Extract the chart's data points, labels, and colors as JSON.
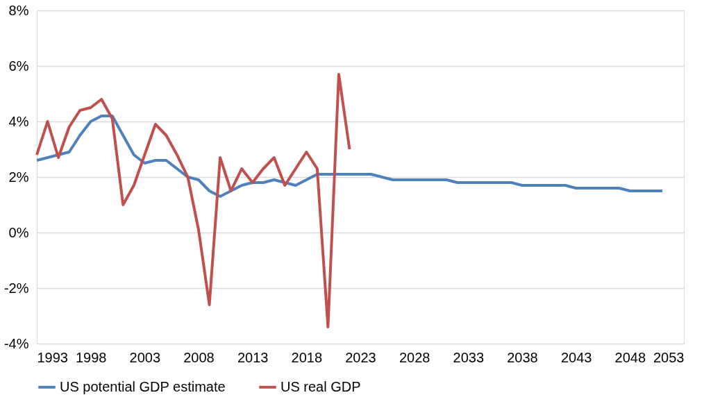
{
  "chart_data": {
    "type": "line",
    "xlim": [
      1993,
      2053
    ],
    "xticks": [
      1993,
      1998,
      2003,
      2008,
      2013,
      2018,
      2023,
      2028,
      2033,
      2038,
      2043,
      2048,
      2053
    ],
    "ylim": [
      -4,
      8
    ],
    "yticks": [
      {
        "value": -4,
        "label": "-4%"
      },
      {
        "value": -2,
        "label": "-2%"
      },
      {
        "value": 0,
        "label": "0%"
      },
      {
        "value": 2,
        "label": "2%"
      },
      {
        "value": 4,
        "label": "4%"
      },
      {
        "value": 6,
        "label": "6%"
      },
      {
        "value": 8,
        "label": "8%"
      }
    ],
    "grid": "y",
    "legend": "bottom",
    "marker": "none",
    "line_style": "solid",
    "series": [
      {
        "name": "US potential GDP estimate",
        "color": "#4f81bd",
        "x": [
          1993,
          1994,
          1995,
          1996,
          1997,
          1998,
          1999,
          2000,
          2001,
          2002,
          2003,
          2004,
          2005,
          2006,
          2007,
          2008,
          2009,
          2010,
          2011,
          2012,
          2013,
          2014,
          2015,
          2016,
          2017,
          2018,
          2019,
          2020,
          2021,
          2022,
          2023,
          2024,
          2025,
          2026,
          2027,
          2028,
          2029,
          2030,
          2031,
          2032,
          2033,
          2034,
          2035,
          2036,
          2037,
          2038,
          2039,
          2040,
          2041,
          2042,
          2043,
          2044,
          2045,
          2046,
          2047,
          2048,
          2049,
          2050,
          2051
        ],
        "values": [
          2.6,
          2.7,
          2.8,
          2.9,
          3.5,
          4.0,
          4.2,
          4.2,
          3.5,
          2.8,
          2.5,
          2.6,
          2.6,
          2.3,
          2.0,
          1.9,
          1.5,
          1.3,
          1.5,
          1.7,
          1.8,
          1.8,
          1.9,
          1.8,
          1.7,
          1.9,
          2.1,
          2.1,
          2.1,
          2.1,
          2.1,
          2.1,
          2.0,
          1.9,
          1.9,
          1.9,
          1.9,
          1.9,
          1.9,
          1.8,
          1.8,
          1.8,
          1.8,
          1.8,
          1.8,
          1.7,
          1.7,
          1.7,
          1.7,
          1.7,
          1.6,
          1.6,
          1.6,
          1.6,
          1.6,
          1.5,
          1.5,
          1.5,
          1.5
        ]
      },
      {
        "name": "US real GDP",
        "color": "#c0504d",
        "x": [
          1993,
          1994,
          1995,
          1996,
          1997,
          1998,
          1999,
          2000,
          2001,
          2002,
          2003,
          2004,
          2005,
          2006,
          2007,
          2008,
          2009,
          2010,
          2011,
          2012,
          2013,
          2014,
          2015,
          2016,
          2017,
          2018,
          2019,
          2020,
          2021,
          2022
        ],
        "values": [
          2.8,
          4.0,
          2.7,
          3.8,
          4.4,
          4.5,
          4.8,
          4.1,
          1.0,
          1.7,
          2.8,
          3.9,
          3.5,
          2.8,
          2.0,
          0.1,
          -2.6,
          2.7,
          1.5,
          2.3,
          1.8,
          2.3,
          2.7,
          1.7,
          2.3,
          2.9,
          2.3,
          -3.4,
          5.7,
          3.0
        ]
      }
    ]
  }
}
